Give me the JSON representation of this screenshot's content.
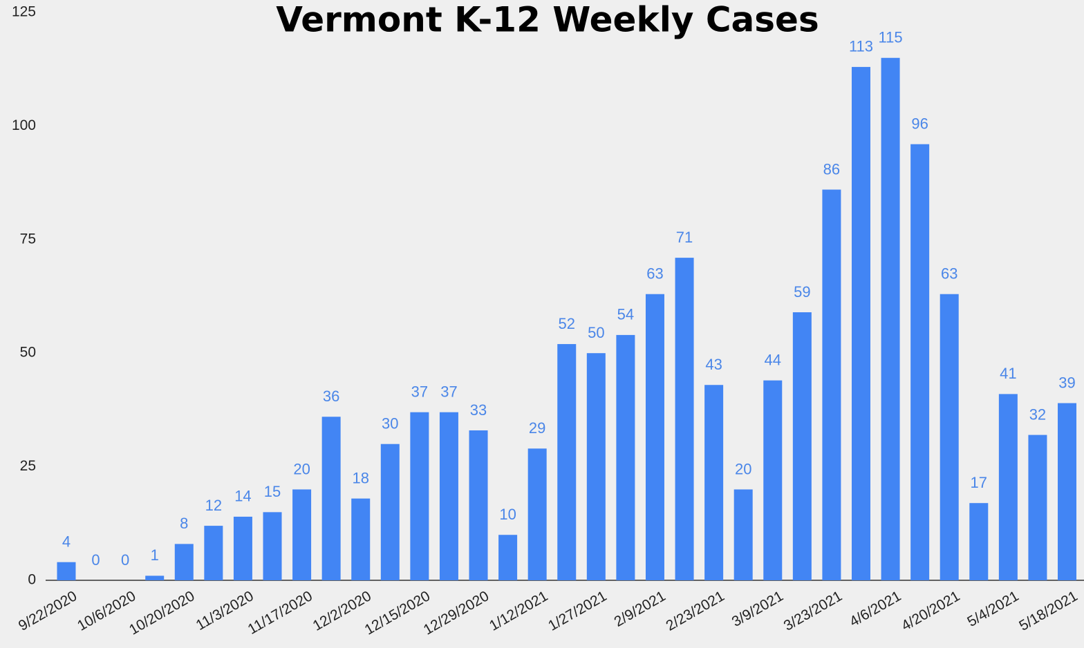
{
  "chart_data": {
    "type": "bar",
    "title": "Vermont K-12 Weekly Cases",
    "categories": [
      "9/22/2020",
      null,
      "10/6/2020",
      null,
      "10/20/2020",
      null,
      "11/3/2020",
      null,
      "11/17/2020",
      null,
      "12/2/2020",
      null,
      "12/15/2020",
      null,
      "12/29/2020",
      null,
      "1/12/2021",
      null,
      "1/27/2021",
      null,
      "2/9/2021",
      null,
      "2/23/2021",
      null,
      "3/9/2021",
      null,
      "3/23/2021",
      null,
      "4/6/2021",
      null,
      "4/20/2021",
      null,
      "5/4/2021",
      null,
      "5/18/2021"
    ],
    "values": [
      4,
      0,
      0,
      1,
      8,
      12,
      14,
      15,
      20,
      36,
      18,
      30,
      37,
      37,
      33,
      10,
      29,
      52,
      50,
      54,
      63,
      71,
      43,
      20,
      44,
      59,
      86,
      113,
      115,
      96,
      63,
      17,
      41,
      32,
      39
    ],
    "color": "#4285f4",
    "ylim": [
      0,
      125
    ],
    "yticks": [
      0,
      25,
      50,
      75,
      100,
      125
    ],
    "grid": false
  }
}
